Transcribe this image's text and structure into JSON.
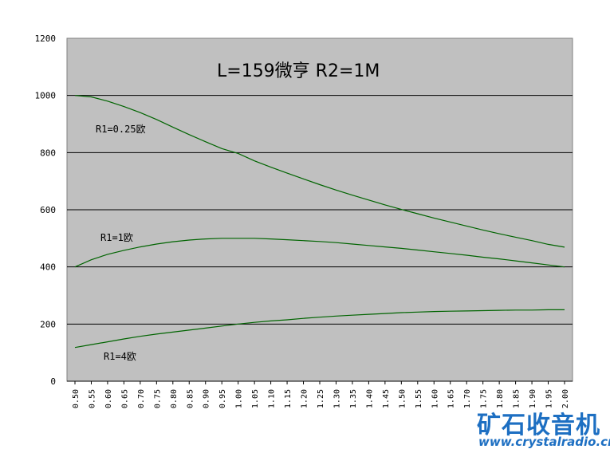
{
  "chart_data": {
    "type": "line",
    "title": "L=159微亨  R2=1M",
    "xlabel": "",
    "ylabel": "",
    "ylim": [
      0,
      1200
    ],
    "y_ticks": [
      0,
      200,
      400,
      600,
      800,
      1000,
      1200
    ],
    "x": [
      "0.50",
      "0.55",
      "0.60",
      "0.65",
      "0.70",
      "0.75",
      "0.80",
      "0.85",
      "0.90",
      "0.95",
      "1.00",
      "1.05",
      "1.10",
      "1.15",
      "1.20",
      "1.25",
      "1.30",
      "1.35",
      "1.40",
      "1.45",
      "1.50",
      "1.55",
      "1.60",
      "1.65",
      "1.70",
      "1.75",
      "1.80",
      "1.85",
      "1.90",
      "1.95",
      "2.00"
    ],
    "x_tick_labels": [
      "0.50",
      "0.55",
      "0.60",
      "0.65",
      "0.70",
      "0.75",
      "0.80",
      "0.85",
      "0.90",
      "0.95",
      "1.00",
      "1.05",
      "1.10",
      "1.15",
      "1.20",
      "1.25",
      "1.30",
      "1.35",
      "1.40",
      "1.45",
      "1.50",
      "1.55",
      "1.60",
      "1.65",
      "1.70",
      "1.75",
      "1.80",
      "1.85",
      "1.90",
      "1.95",
      "2.00"
    ],
    "grid": "horizontal",
    "plot_background": "#c0c0c0",
    "line_color": "#006400",
    "series": [
      {
        "name": "R1=0.25欧",
        "values": [
          1000,
          995,
          980,
          961,
          940,
          916,
          889,
          863,
          838,
          814,
          797,
          771,
          749,
          728,
          708,
          688,
          669,
          651,
          634,
          617,
          601,
          586,
          571,
          557,
          543,
          529,
          516,
          504,
          492,
          479,
          469
        ]
      },
      {
        "name": "R1=1欧",
        "values": [
          400,
          425,
          444,
          458,
          470,
          480,
          488,
          494,
          498,
          500,
          500,
          500,
          498,
          495,
          492,
          489,
          485,
          480,
          475,
          470,
          465,
          459,
          453,
          447,
          441,
          434,
          428,
          421,
          414,
          407,
          400
        ]
      },
      {
        "name": "R1=4欧",
        "values": [
          118,
          128,
          138,
          148,
          157,
          165,
          172,
          179,
          186,
          193,
          200,
          206,
          211,
          215,
          220,
          224,
          228,
          231,
          234,
          237,
          240,
          242,
          244,
          245,
          246,
          247,
          248,
          249,
          249,
          250,
          250
        ]
      }
    ],
    "annotations": [
      "R1=0.25欧",
      "R1=1欧",
      "R1=4欧"
    ]
  },
  "watermark": {
    "logo_text": "矿石收音机",
    "url": "www.crystalradio.cn"
  }
}
